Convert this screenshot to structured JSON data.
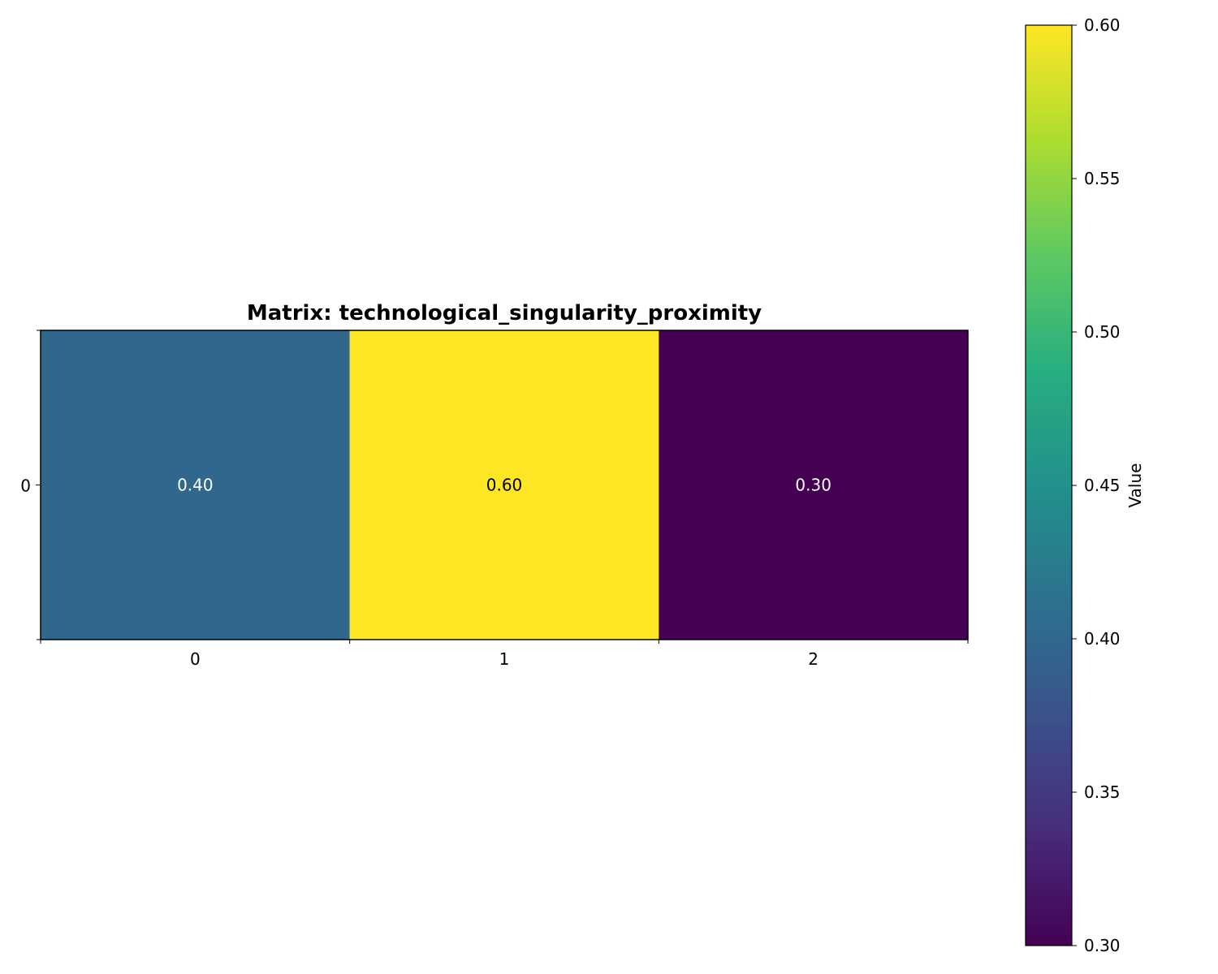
{
  "chart_data": {
    "type": "heatmap",
    "title": "Matrix: technological_singularity_proximity",
    "rows": [
      "0"
    ],
    "columns": [
      "0",
      "1",
      "2"
    ],
    "values": [
      [
        0.4,
        0.6,
        0.3
      ]
    ],
    "value_labels": [
      [
        "0.40",
        "0.60",
        "0.30"
      ]
    ],
    "colormap": "viridis",
    "colorbar": {
      "label": "Value",
      "range": [
        0.3,
        0.6
      ],
      "ticks": [
        0.3,
        0.35,
        0.4,
        0.45,
        0.5,
        0.55,
        0.6
      ],
      "tick_labels": [
        "0.30",
        "0.35",
        "0.40",
        "0.45",
        "0.50",
        "0.55",
        "0.60"
      ]
    },
    "grid": false
  }
}
